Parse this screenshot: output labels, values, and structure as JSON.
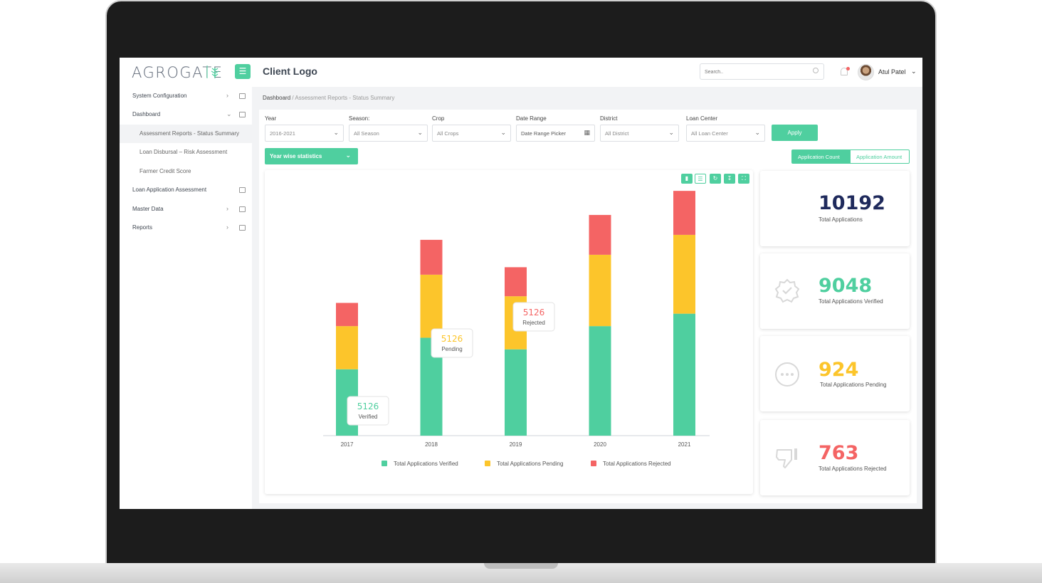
{
  "header": {
    "brand": "AGROGATE",
    "client_logo": "Client Logo",
    "search_placeholder": "Search..",
    "user_name": "Atul Patel",
    "accent_color": "#4fcf9f"
  },
  "sidebar": {
    "items": [
      {
        "label": "System Configuration",
        "icon": "building-icon"
      },
      {
        "label": "Dashboard",
        "icon": "grid-icon"
      },
      {
        "label": "Assessment Reports - Status Summary"
      },
      {
        "label": "Loan Disbursal – Risk Assessment"
      },
      {
        "label": "Farmer Credit Score"
      },
      {
        "label": "Loan Application Assessment",
        "icon": "clipboard-icon"
      },
      {
        "label": "Master Data",
        "icon": "list-icon"
      },
      {
        "label": "Reports",
        "icon": "table-icon"
      }
    ]
  },
  "breadcrumb": {
    "root": "Dashboard",
    "separator": " / ",
    "current": "Assessment Reports - Status Summary"
  },
  "filters": {
    "year": {
      "label": "Year",
      "value": "2016-2021"
    },
    "season": {
      "label": "Season:",
      "value": "All Season"
    },
    "crop": {
      "label": "Crop",
      "value": "All Crops"
    },
    "date_range": {
      "label": "Date Range",
      "value": "Date Range Picker"
    },
    "district": {
      "label": "District",
      "value": "All District"
    },
    "loan_center": {
      "label": "Loan Center",
      "value": "All Loan Center"
    },
    "apply_label": "Apply"
  },
  "view": {
    "stats_select": "Year wise statistics",
    "toggle_count": "Application Count",
    "toggle_amount": "Application Amount"
  },
  "chart_data": {
    "type": "bar",
    "stacked": true,
    "categories": [
      "2017",
      "2018",
      "2019",
      "2020",
      "2021"
    ],
    "series": [
      {
        "name": "Total Applications Verified",
        "color": "#4fcf9f",
        "values": [
          400,
          590,
          520,
          660,
          735
        ]
      },
      {
        "name": "Total Applications Pending",
        "color": "#fcc52b",
        "values": [
          260,
          380,
          320,
          430,
          475
        ]
      },
      {
        "name": "Total Applications Rejected",
        "color": "#f46464",
        "values": [
          140,
          210,
          175,
          240,
          265
        ]
      }
    ],
    "tooltips": [
      {
        "value": "5126",
        "label": "Verified",
        "color": "#4fcf9f",
        "category": "2017"
      },
      {
        "value": "5126",
        "label": "Pending",
        "color": "#fcc52b",
        "category": "2018"
      },
      {
        "value": "5126",
        "label": "Rejected",
        "color": "#f46464",
        "category": "2019"
      }
    ],
    "ylim": [
      0,
      1600
    ],
    "legend_position": "bottom"
  },
  "stats": [
    {
      "value": "10192",
      "caption": "Total Applications",
      "color": "#1f2a5c"
    },
    {
      "value": "9048",
      "caption": "Total Applications Verified",
      "color": "#4fcf9f",
      "icon": "verified-badge-icon"
    },
    {
      "value": "924",
      "caption": "Total Applications Pending",
      "color": "#fcc52b",
      "icon": "pending-dots-icon"
    },
    {
      "value": "763",
      "caption": "Total Applications Rejected",
      "color": "#f46464",
      "icon": "thumbs-down-icon"
    }
  ]
}
